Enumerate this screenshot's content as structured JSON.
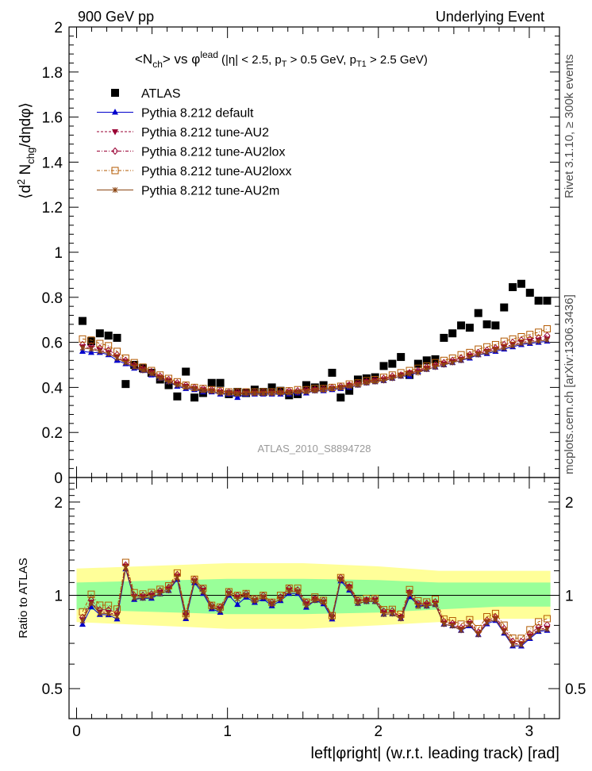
{
  "header": {
    "left": "900 GeV pp",
    "right": "Underlying Event"
  },
  "plot_title": {
    "prefix": "<N",
    "prefix_sub": "ch",
    "mid": "> vs φ",
    "mid_sup": "lead",
    "cuts_a": "(|η| < 2.5, p",
    "cuts_a_sub": "T",
    "cuts_b": " > 0.5 GeV, p",
    "cuts_b_sub": "T1",
    "cuts_c": " > 2.5 GeV)"
  },
  "ylabel_top": {
    "a": "⟨d",
    "sup": "2",
    "b": " N",
    "sub": "chg",
    "c": "/dηdφ⟩"
  },
  "ylabel_bottom": "Ratio to ATLAS",
  "xlabel": "left|φright| (w.r.t. leading track) [rad]",
  "watermark": "ATLAS_2010_S8894728",
  "side_text_top": "Rivet 3.1.10, ≥ 300k events",
  "side_text_bottom": "mcplots.cern.ch [arXiv:1306.3436]",
  "colors": {
    "data": "#000000",
    "default": "#0000cc",
    "au2": "#990033",
    "au2lox": "#990033",
    "au2loxx": "#b35900",
    "au2m": "#8b4513",
    "band_inner": "#99ff99",
    "band_outer": "#ffff99"
  },
  "chart_data": [
    {
      "type": "scatter",
      "title": "<Nch> vs phi_lead (|eta| < 2.5, pT > 0.5 GeV, pT1 > 2.5 GeV)",
      "xlim": [
        -0.05,
        3.2
      ],
      "ylim": [
        0,
        2
      ],
      "yticks": [
        "0",
        "0.2",
        "0.4",
        "0.6",
        "0.8",
        "1",
        "1.2",
        "1.4",
        "1.6",
        "1.8",
        "2"
      ],
      "legend_position": "top-left",
      "x": [
        0.0393,
        0.0971,
        0.1541,
        0.2112,
        0.2683,
        0.3252,
        0.3822,
        0.4392,
        0.4962,
        0.5532,
        0.6102,
        0.6672,
        0.7242,
        0.7812,
        0.8382,
        0.8952,
        0.9522,
        1.0092,
        1.0662,
        1.1232,
        1.1802,
        1.2372,
        1.2942,
        1.3512,
        1.4082,
        1.4652,
        1.5222,
        1.5792,
        1.6362,
        1.6932,
        1.7502,
        1.8072,
        1.8642,
        1.9212,
        1.9782,
        2.0352,
        2.0922,
        2.1492,
        2.2062,
        2.2632,
        2.3202,
        2.3772,
        2.4342,
        2.4912,
        2.5482,
        2.6052,
        2.6622,
        2.7192,
        2.7762,
        2.8332,
        2.8902,
        2.9472,
        3.0042,
        3.0612,
        3.1182
      ],
      "series": [
        {
          "name": "ATLAS",
          "key": "data",
          "marker": "square-filled",
          "values": [
            0.695,
            0.605,
            0.64,
            0.63,
            0.62,
            0.415,
            0.5,
            0.485,
            0.465,
            0.435,
            0.41,
            0.36,
            0.47,
            0.355,
            0.375,
            0.42,
            0.42,
            0.37,
            0.38,
            0.375,
            0.39,
            0.38,
            0.4,
            0.385,
            0.365,
            0.37,
            0.41,
            0.4,
            0.41,
            0.465,
            0.355,
            0.385,
            0.435,
            0.44,
            0.445,
            0.495,
            0.505,
            0.535,
            0.455,
            0.505,
            0.52,
            0.525,
            0.62,
            0.64,
            0.675,
            0.665,
            0.73,
            0.68,
            0.675,
            0.755,
            0.845,
            0.86,
            0.82,
            0.785,
            0.785
          ]
        },
        {
          "name": "Pythia 8.212 default",
          "key": "default",
          "marker": "triangle-up-filled",
          "line": "solid",
          "values": [
            0.56,
            0.555,
            0.555,
            0.545,
            0.52,
            0.505,
            0.485,
            0.475,
            0.455,
            0.44,
            0.425,
            0.405,
            0.395,
            0.39,
            0.38,
            0.38,
            0.37,
            0.37,
            0.355,
            0.37,
            0.37,
            0.37,
            0.37,
            0.37,
            0.37,
            0.375,
            0.375,
            0.385,
            0.385,
            0.39,
            0.395,
            0.4,
            0.41,
            0.42,
            0.425,
            0.43,
            0.44,
            0.45,
            0.45,
            0.47,
            0.48,
            0.49,
            0.5,
            0.51,
            0.52,
            0.53,
            0.545,
            0.55,
            0.56,
            0.57,
            0.58,
            0.59,
            0.595,
            0.6,
            0.605
          ]
        },
        {
          "name": "Pythia 8.212 tune-AU2",
          "key": "au2",
          "marker": "triangle-down-filled",
          "line": "dashed",
          "values": [
            0.58,
            0.575,
            0.565,
            0.555,
            0.535,
            0.515,
            0.495,
            0.48,
            0.465,
            0.445,
            0.43,
            0.415,
            0.405,
            0.395,
            0.39,
            0.385,
            0.38,
            0.375,
            0.375,
            0.375,
            0.375,
            0.375,
            0.375,
            0.375,
            0.38,
            0.38,
            0.385,
            0.39,
            0.39,
            0.395,
            0.4,
            0.41,
            0.415,
            0.425,
            0.43,
            0.435,
            0.445,
            0.455,
            0.465,
            0.47,
            0.485,
            0.495,
            0.505,
            0.515,
            0.525,
            0.54,
            0.55,
            0.56,
            0.57,
            0.58,
            0.59,
            0.6,
            0.605,
            0.61,
            0.615
          ]
        },
        {
          "name": "Pythia 8.212 tune-AU2lox",
          "key": "au2lox",
          "marker": "diamond-open",
          "line": "dashdot",
          "values": [
            0.59,
            0.585,
            0.575,
            0.565,
            0.545,
            0.52,
            0.5,
            0.485,
            0.47,
            0.45,
            0.435,
            0.42,
            0.41,
            0.4,
            0.395,
            0.39,
            0.385,
            0.38,
            0.38,
            0.38,
            0.38,
            0.38,
            0.38,
            0.38,
            0.385,
            0.385,
            0.39,
            0.39,
            0.395,
            0.4,
            0.405,
            0.41,
            0.42,
            0.425,
            0.435,
            0.44,
            0.45,
            0.455,
            0.465,
            0.475,
            0.49,
            0.5,
            0.51,
            0.52,
            0.53,
            0.545,
            0.555,
            0.565,
            0.575,
            0.59,
            0.6,
            0.61,
            0.615,
            0.62,
            0.63
          ]
        },
        {
          "name": "Pythia 8.212 tune-AU2loxx",
          "key": "au2loxx",
          "marker": "square-open",
          "line": "dashdot",
          "values": [
            0.615,
            0.61,
            0.595,
            0.585,
            0.56,
            0.53,
            0.51,
            0.49,
            0.475,
            0.455,
            0.44,
            0.425,
            0.41,
            0.4,
            0.395,
            0.39,
            0.385,
            0.38,
            0.38,
            0.38,
            0.38,
            0.38,
            0.38,
            0.385,
            0.385,
            0.39,
            0.39,
            0.395,
            0.395,
            0.4,
            0.405,
            0.415,
            0.42,
            0.43,
            0.435,
            0.445,
            0.455,
            0.465,
            0.475,
            0.485,
            0.495,
            0.51,
            0.52,
            0.53,
            0.545,
            0.555,
            0.57,
            0.58,
            0.59,
            0.605,
            0.615,
            0.625,
            0.635,
            0.645,
            0.66
          ]
        },
        {
          "name": "Pythia 8.212 tune-AU2m",
          "key": "au2m",
          "marker": "star",
          "line": "solid",
          "values": [
            0.575,
            0.57,
            0.56,
            0.55,
            0.53,
            0.51,
            0.49,
            0.475,
            0.46,
            0.44,
            0.425,
            0.41,
            0.4,
            0.395,
            0.385,
            0.385,
            0.375,
            0.375,
            0.37,
            0.375,
            0.375,
            0.375,
            0.375,
            0.375,
            0.375,
            0.38,
            0.38,
            0.385,
            0.39,
            0.395,
            0.4,
            0.405,
            0.41,
            0.42,
            0.425,
            0.43,
            0.44,
            0.45,
            0.46,
            0.465,
            0.48,
            0.49,
            0.5,
            0.51,
            0.52,
            0.535,
            0.545,
            0.555,
            0.565,
            0.575,
            0.585,
            0.595,
            0.6,
            0.605,
            0.61
          ]
        }
      ]
    },
    {
      "type": "scatter",
      "title": "Ratio to ATLAS",
      "xlabel": "left|φright| (w.r.t. leading track) [rad]",
      "ylabel": "Ratio to ATLAS",
      "xlim": [
        -0.05,
        3.2
      ],
      "ylim": [
        0.4,
        2.4
      ],
      "yscale": "log",
      "yticks_left": [
        "0.5",
        "1",
        "2"
      ],
      "yticks_right": [
        "0.5",
        "1",
        "2"
      ],
      "xticks": [
        "0",
        "1",
        "2",
        "3"
      ],
      "band_inner": {
        "x": [
          0.0,
          1.0,
          1.5,
          2.0,
          2.4,
          2.8,
          3.14
        ],
        "lower": [
          0.9,
          0.87,
          0.87,
          0.88,
          0.9,
          0.92,
          0.92
        ],
        "upper": [
          1.1,
          1.13,
          1.13,
          1.12,
          1.1,
          1.1,
          1.1
        ]
      },
      "band_outer": {
        "x": [
          0.0,
          1.0,
          1.5,
          2.0,
          2.4,
          2.8,
          3.14
        ],
        "lower": [
          0.82,
          0.78,
          0.78,
          0.8,
          0.82,
          0.84,
          0.84
        ],
        "upper": [
          1.22,
          1.27,
          1.27,
          1.24,
          1.2,
          1.2,
          1.2
        ]
      }
    }
  ]
}
